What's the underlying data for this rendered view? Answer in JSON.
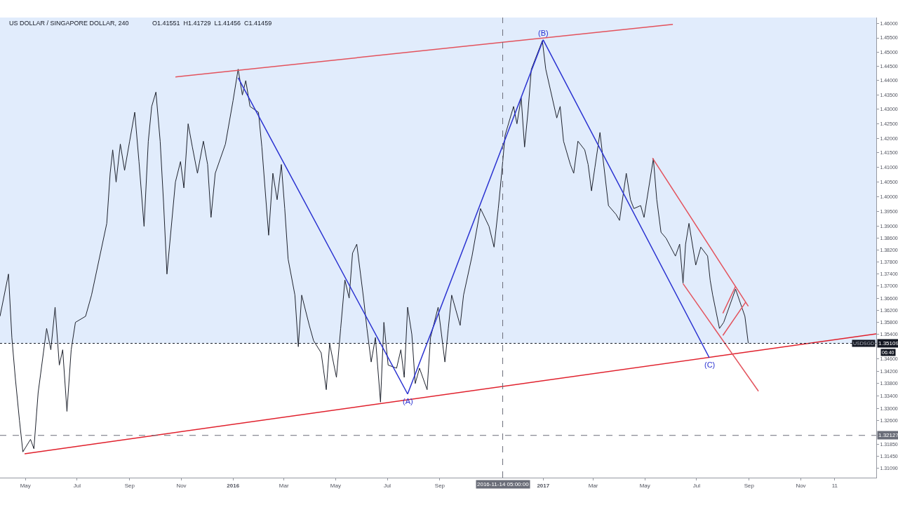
{
  "chart_data": {
    "type": "line",
    "title": "US DOLLAR / SINGAPORE DOLLAR, 240",
    "subtitle": "O1.41551  H1.41729  L1.41456  C1.41459",
    "log": true,
    "xlim": [
      "2015-04-01",
      "2018-01-29"
    ],
    "xticks": [
      {
        "value": "2015-05-01",
        "label": "May"
      },
      {
        "value": "2015-07-01",
        "label": "Jul"
      },
      {
        "value": "2015-09-01",
        "label": "Sep"
      },
      {
        "value": "2015-11-01",
        "label": "Nov"
      },
      {
        "value": "2016-01-01",
        "label": "2016"
      },
      {
        "value": "2016-03-01",
        "label": "Mar"
      },
      {
        "value": "2016-05-01",
        "label": "May"
      },
      {
        "value": "2016-07-01",
        "label": "Jul"
      },
      {
        "value": "2016-09-01",
        "label": "Sep"
      },
      {
        "value": "2017-01-01",
        "label": "2017"
      },
      {
        "value": "2017-03-01",
        "label": "Mar"
      },
      {
        "value": "2017-05-01",
        "label": "May"
      },
      {
        "value": "2017-07-01",
        "label": "Jul"
      },
      {
        "value": "2017-09-01",
        "label": "Sep"
      },
      {
        "value": "2017-11-01",
        "label": "Nov"
      },
      {
        "value": "2017-12-11",
        "label": "11"
      }
    ],
    "ylim": [
      1.3078,
      1.4622
    ],
    "yticks": [
      {
        "value": 1.46,
        "label": "1.46000"
      },
      {
        "value": 1.455,
        "label": "1.45500"
      },
      {
        "value": 1.45,
        "label": "1.45000"
      },
      {
        "value": 1.445,
        "label": "1.44500"
      },
      {
        "value": 1.44,
        "label": "1.44000"
      },
      {
        "value": 1.435,
        "label": "1.43500"
      },
      {
        "value": 1.43,
        "label": "1.43000"
      },
      {
        "value": 1.425,
        "label": "1.42500"
      },
      {
        "value": 1.42,
        "label": "1.42000"
      },
      {
        "value": 1.415,
        "label": "1.41500"
      },
      {
        "value": 1.41,
        "label": "1.41000"
      },
      {
        "value": 1.405,
        "label": "1.40500"
      },
      {
        "value": 1.4,
        "label": "1.40000"
      },
      {
        "value": 1.395,
        "label": "1.39500"
      },
      {
        "value": 1.39,
        "label": "1.39000"
      },
      {
        "value": 1.386,
        "label": "1.38600"
      },
      {
        "value": 1.382,
        "label": "1.38200"
      },
      {
        "value": 1.378,
        "label": "1.37800"
      },
      {
        "value": 1.374,
        "label": "1.37400"
      },
      {
        "value": 1.37,
        "label": "1.37000"
      },
      {
        "value": 1.366,
        "label": "1.36600"
      },
      {
        "value": 1.362,
        "label": "1.36200"
      },
      {
        "value": 1.358,
        "label": "1.35800"
      },
      {
        "value": 1.354,
        "label": "1.35400"
      },
      {
        "value": 1.346,
        "label": "1.34600"
      },
      {
        "value": 1.342,
        "label": "1.34200"
      },
      {
        "value": 1.338,
        "label": "1.33800"
      },
      {
        "value": 1.334,
        "label": "1.33400"
      },
      {
        "value": 1.33,
        "label": "1.33000"
      },
      {
        "value": 1.326,
        "label": "1.32600"
      },
      {
        "value": 1.3185,
        "label": "1.31850"
      },
      {
        "value": 1.3145,
        "label": "1.31450"
      },
      {
        "value": 1.3109,
        "label": "1.31090"
      }
    ],
    "series": [
      {
        "color": "#1e222d",
        "x": [
          "2015-04-01",
          "2015-04-11",
          "2015-04-15",
          "2015-04-19",
          "2015-04-24",
          "2015-04-28",
          "2015-05-07",
          "2015-05-11",
          "2015-05-16",
          "2015-05-26",
          "2015-05-31",
          "2015-06-05",
          "2015-06-10",
          "2015-06-14",
          "2015-06-19",
          "2015-06-24",
          "2015-06-29",
          "2015-07-11",
          "2015-07-18",
          "2015-08-05",
          "2015-08-09",
          "2015-08-12",
          "2015-08-16",
          "2015-08-21",
          "2015-08-26",
          "2015-09-01",
          "2015-09-07",
          "2015-09-12",
          "2015-09-18",
          "2015-09-23",
          "2015-09-27",
          "2015-10-02",
          "2015-10-07",
          "2015-10-11",
          "2015-10-15",
          "2015-10-25",
          "2015-10-31",
          "2015-11-04",
          "2015-11-09",
          "2015-11-14",
          "2015-11-20",
          "2015-11-27",
          "2015-12-02",
          "2015-12-06",
          "2015-12-11",
          "2015-12-23",
          "2016-01-01",
          "2016-01-07",
          "2016-01-12",
          "2016-01-16",
          "2016-01-21",
          "2016-01-31",
          "2016-02-04",
          "2016-02-12",
          "2016-02-17",
          "2016-02-22",
          "2016-02-27",
          "2016-03-02",
          "2016-03-06",
          "2016-03-14",
          "2016-03-18",
          "2016-03-22",
          "2016-03-31",
          "2016-04-05",
          "2016-04-14",
          "2016-04-20",
          "2016-04-24",
          "2016-05-02",
          "2016-05-07",
          "2016-05-12",
          "2016-05-17",
          "2016-05-21",
          "2016-05-26",
          "2016-06-03",
          "2016-06-07",
          "2016-06-12",
          "2016-06-17",
          "2016-06-23",
          "2016-06-27",
          "2016-07-02",
          "2016-07-12",
          "2016-07-17",
          "2016-07-21",
          "2016-07-25",
          "2016-07-30",
          "2016-08-03",
          "2016-08-08",
          "2016-08-17",
          "2016-08-21",
          "2016-08-30",
          "2016-09-03",
          "2016-09-07",
          "2016-09-11",
          "2016-09-15",
          "2016-09-25",
          "2016-09-29",
          "2016-10-09",
          "2016-10-19",
          "2016-10-29",
          "2016-11-04",
          "2016-11-09",
          "2016-11-13",
          "2016-11-17",
          "2016-11-27",
          "2016-12-01",
          "2016-12-06",
          "2016-12-10",
          "2016-12-14",
          "2016-12-18",
          "2016-12-31",
          "2017-01-04",
          "2017-01-17",
          "2017-01-21",
          "2017-01-25",
          "2017-02-02",
          "2017-02-06",
          "2017-02-11",
          "2017-02-19",
          "2017-02-23",
          "2017-02-27",
          "2017-03-03",
          "2017-03-09",
          "2017-03-19",
          "2017-03-28",
          "2017-04-01",
          "2017-04-09",
          "2017-04-14",
          "2017-04-18",
          "2017-04-26",
          "2017-04-30",
          "2017-05-11",
          "2017-05-15",
          "2017-05-20",
          "2017-05-26",
          "2017-06-06",
          "2017-06-11",
          "2017-06-15",
          "2017-06-18",
          "2017-06-22",
          "2017-06-30",
          "2017-07-06",
          "2017-07-14",
          "2017-07-17",
          "2017-07-20",
          "2017-07-28",
          "2017-08-02",
          "2017-08-16",
          "2017-08-27",
          "2017-08-31"
        ],
        "values": [
          1.36,
          1.374,
          1.353,
          1.34,
          1.326,
          1.316,
          1.32,
          1.317,
          1.335,
          1.356,
          1.349,
          1.363,
          1.344,
          1.349,
          1.329,
          1.349,
          1.358,
          1.36,
          1.367,
          1.391,
          1.408,
          1.416,
          1.405,
          1.418,
          1.409,
          1.419,
          1.429,
          1.412,
          1.39,
          1.419,
          1.431,
          1.436,
          1.419,
          1.398,
          1.374,
          1.405,
          1.412,
          1.403,
          1.425,
          1.417,
          1.408,
          1.419,
          1.411,
          1.393,
          1.408,
          1.418,
          1.433,
          1.444,
          1.435,
          1.44,
          1.431,
          1.429,
          1.417,
          1.387,
          1.408,
          1.399,
          1.411,
          1.396,
          1.379,
          1.367,
          1.35,
          1.367,
          1.357,
          1.352,
          1.348,
          1.336,
          1.351,
          1.34,
          1.356,
          1.372,
          1.366,
          1.381,
          1.384,
          1.366,
          1.356,
          1.345,
          1.353,
          1.332,
          1.358,
          1.344,
          1.343,
          1.349,
          1.34,
          1.363,
          1.354,
          1.338,
          1.343,
          1.336,
          1.353,
          1.363,
          1.354,
          1.345,
          1.356,
          1.367,
          1.357,
          1.367,
          1.38,
          1.396,
          1.39,
          1.383,
          1.396,
          1.408,
          1.421,
          1.431,
          1.425,
          1.434,
          1.417,
          1.429,
          1.444,
          1.454,
          1.444,
          1.427,
          1.431,
          1.419,
          1.411,
          1.408,
          1.419,
          1.416,
          1.411,
          1.402,
          1.41,
          1.422,
          1.397,
          1.394,
          1.392,
          1.408,
          1.399,
          1.396,
          1.397,
          1.393,
          1.413,
          1.399,
          1.388,
          1.386,
          1.38,
          1.384,
          1.371,
          1.384,
          1.391,
          1.377,
          1.383,
          1.38,
          1.372,
          1.367,
          1.356,
          1.358,
          1.369,
          1.36,
          1.35109
        ]
      },
      {
        "type": "line",
        "color": "#e3525c",
        "x": [
          "2015-10-25",
          "2017-06-03"
        ],
        "values": [
          1.4413,
          1.4598
        ]
      },
      {
        "type": "line",
        "color": "#e0202c",
        "x": [
          "2015-04-30",
          "2018-01-29"
        ],
        "values": [
          1.3154,
          1.3542
        ]
      },
      {
        "type": "line",
        "color": "#e3525c",
        "x": [
          "2017-05-10",
          "2017-08-31"
        ],
        "values": [
          1.4132,
          1.3633
        ]
      },
      {
        "type": "line",
        "color": "#e3525c",
        "x": [
          "2017-06-15",
          "2017-09-12"
        ],
        "values": [
          1.3708,
          1.3355
        ]
      },
      {
        "type": "line",
        "color": "#e3525c",
        "x": [
          "2017-08-01",
          "2017-08-16"
        ],
        "values": [
          1.361,
          1.3699
        ]
      },
      {
        "type": "line",
        "color": "#e3525c",
        "x": [
          "2017-08-01",
          "2017-08-28"
        ],
        "values": [
          1.3537,
          1.3647
        ]
      },
      {
        "type": "line",
        "color": "#2b33d1",
        "x": [
          "2016-01-07",
          "2016-07-25",
          "2017-01-01",
          "2017-07-16"
        ],
        "values": [
          1.441,
          1.3346,
          1.4543,
          1.3464
        ]
      }
    ],
    "ref_lines": [
      {
        "axis": "y",
        "value": 1.35109,
        "label": "1.35109",
        "color": "#131722",
        "line_style": "dotted"
      },
      {
        "axis": "y",
        "value": 1.32127,
        "label": "1.32127",
        "color": "#6a6d78",
        "line_style": "dashed"
      },
      {
        "axis": "x",
        "value": "2016-11-14T05:00",
        "label": "2016-11-14 05:00:00",
        "color": "#6a6d78",
        "line_style": "dashed"
      }
    ],
    "bands": [
      {
        "axis": "y",
        "from": 1.35109,
        "to": 1.4622,
        "color": "#e1ecfc"
      }
    ],
    "annotations": [
      {
        "text": "(A)",
        "x": "2016-07-25",
        "y": 1.3346
      },
      {
        "text": "(B)",
        "x": "2017-01-01",
        "y": 1.4543
      },
      {
        "text": "(C)",
        "x": "2017-07-16",
        "y": 1.3464
      },
      {
        "text": "USDSGD",
        "y": 1.35109
      },
      {
        "text": "06:40",
        "y": 1.35109
      }
    ]
  }
}
